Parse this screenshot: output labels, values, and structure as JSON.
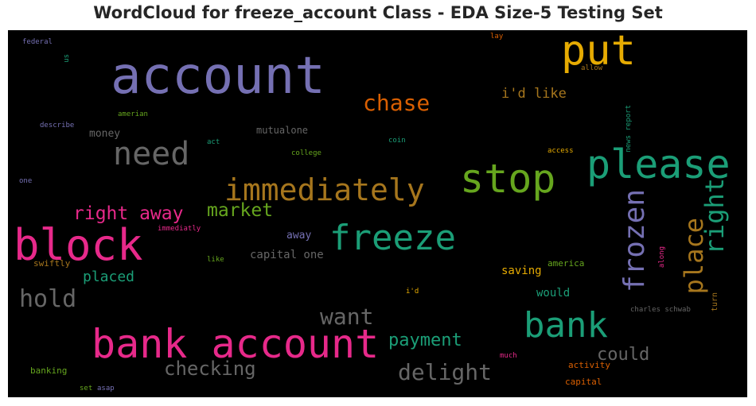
{
  "title": "WordCloud for freeze_account Class - EDA Size-5 Testing Set",
  "colors": {
    "purple": "#7570b3",
    "teal": "#1b9e77",
    "orange": "#d95f02",
    "magenta": "#e7298a",
    "green": "#66a61e",
    "gold": "#e6ab02",
    "brown": "#a6761d",
    "gray": "#666666",
    "background": "#000000"
  },
  "words": {
    "account": "account",
    "put": "put",
    "please": "please",
    "stop": "stop",
    "block": "block",
    "bank_account": "bank account",
    "bank": "bank",
    "freeze": "freeze",
    "immediately": "immediately",
    "need": "need",
    "frozen": "frozen",
    "place": "place",
    "right": "right",
    "chase": "chase",
    "hold": "hold",
    "want": "want",
    "delight": "delight",
    "checking": "checking",
    "right_away": "right away",
    "market": "market",
    "payment": "payment",
    "could": "could",
    "placed": "placed",
    "id_like": "i'd like",
    "money": "money",
    "capital_one": "capital one",
    "mutualone": "mutualone",
    "away": "away",
    "saving": "saving",
    "would": "would",
    "america": "america",
    "activity": "activity",
    "capital": "capital",
    "federal": "federal",
    "us": "us",
    "lay": "lay",
    "allow": "allow",
    "amerian": "amerian",
    "describe": "describe",
    "act": "act",
    "college": "college",
    "coin": "coin",
    "news_report": "news report",
    "access": "access",
    "one": "one",
    "immediatly": "immediatly",
    "swiftly": "swiftly",
    "like": "like",
    "along": "along",
    "turn": "turn",
    "id": "i'd",
    "charles_schwab": "charles schwab",
    "banking": "banking",
    "much": "much",
    "set": "set",
    "asap": "asap"
  }
}
